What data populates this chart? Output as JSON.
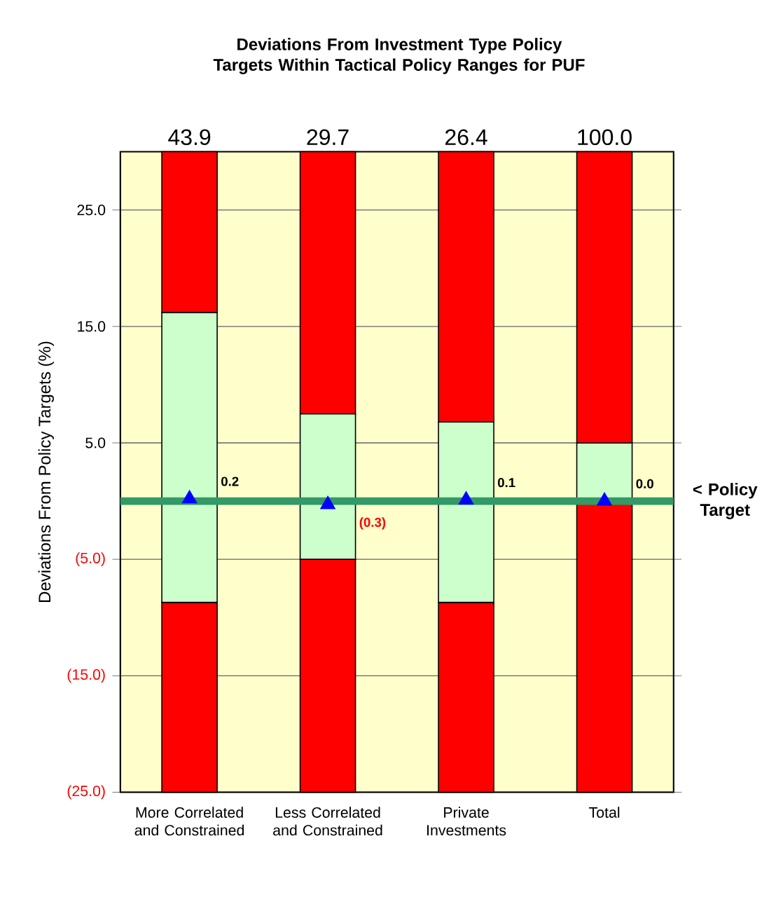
{
  "chart_data": {
    "type": "bar",
    "title": "Deviations From Investment Type Policy Targets Within Tactical Policy Ranges for PUF",
    "ylabel": "Deviations From Policy Targets (%)",
    "categories": [
      "More Correlated and Constrained",
      "Less Correlated and Constrained",
      "Private Investments",
      "Total"
    ],
    "series": [
      {
        "color": "#ff0000",
        "base": [
          -25,
          -25,
          -25,
          -25
        ],
        "values": [
          16.3,
          20,
          16.3,
          25
        ]
      },
      {
        "color": "#ccffcc",
        "base": [
          -8.7,
          -5,
          -8.7,
          0
        ],
        "values": [
          24.9,
          12.5,
          15.5,
          5
        ]
      },
      {
        "color": "#ff0000",
        "base": [
          16.2,
          7.5,
          6.8,
          5
        ],
        "values": [
          13.8,
          22.5,
          23.2,
          25
        ]
      },
      {
        "type": "scatter",
        "color": "#0000ff",
        "marker": "triangle",
        "values": [
          0.2,
          -0.3,
          0.1,
          0.0
        ],
        "value_labels": [
          "0.2",
          "(0.3)",
          "0.1",
          "0.0"
        ]
      }
    ],
    "ylim": [
      -25,
      30
    ],
    "yticks": [
      {
        "value": 25,
        "label": "25.0"
      },
      {
        "value": 15,
        "label": "15.0"
      },
      {
        "value": 5,
        "label": "5.0"
      },
      {
        "value": -5,
        "label": "(5.0)"
      },
      {
        "value": -15,
        "label": "(15.0)"
      },
      {
        "value": -25,
        "label": "(25.0)"
      }
    ],
    "grid": "y",
    "ref_lines": [
      {
        "axis": "y",
        "value": 0,
        "label": "< Policy Target",
        "color": "#339966"
      }
    ],
    "annotations": [
      {
        "text": "43.9",
        "x": "More Correlated and Constrained",
        "y": 30
      },
      {
        "text": "29.7",
        "x": "Less Correlated and Constrained",
        "y": 30
      },
      {
        "text": "26.4",
        "x": "Private Investments",
        "y": 30
      },
      {
        "text": "100.0",
        "x": "Total",
        "y": 30
      }
    ]
  }
}
